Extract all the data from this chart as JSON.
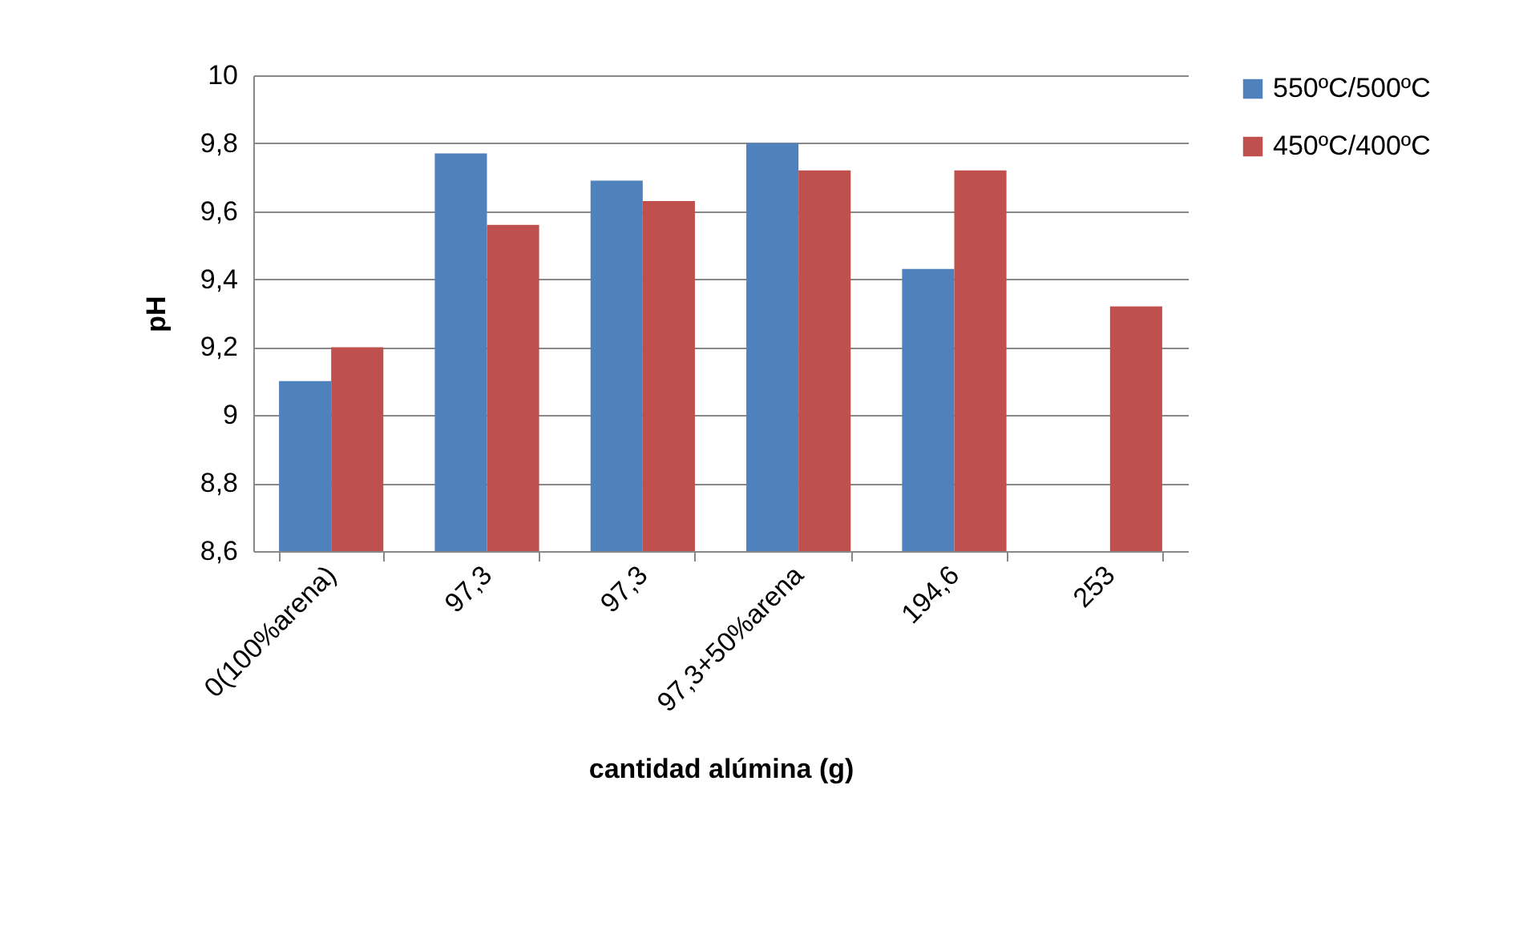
{
  "chart_data": {
    "type": "bar",
    "xlabel": "cantidad alúmina (g)",
    "ylabel": "pH",
    "categories": [
      "0(100%arena)",
      "97,3",
      "97,3",
      "97,3+50%arena",
      "194,6",
      "253"
    ],
    "series": [
      {
        "name": "550ºC/500ºC",
        "color": "#4f81bd",
        "values": [
          9.1,
          9.77,
          9.69,
          9.8,
          9.43,
          null
        ]
      },
      {
        "name": "450ºC/400ºC",
        "color": "#c0504d",
        "values": [
          9.2,
          9.56,
          9.63,
          9.72,
          9.72,
          9.32
        ]
      }
    ],
    "ylim": [
      8.6,
      10
    ],
    "yticks": [
      {
        "value": 8.6,
        "label": "8,6"
      },
      {
        "value": 8.8,
        "label": "8,8"
      },
      {
        "value": 9,
        "label": "9"
      },
      {
        "value": 9.2,
        "label": "9,2"
      },
      {
        "value": 9.4,
        "label": "9,4"
      },
      {
        "value": 9.6,
        "label": "9,6"
      },
      {
        "value": 9.8,
        "label": "9,8"
      },
      {
        "value": 10,
        "label": "10"
      }
    ],
    "grid": "y",
    "legend": "right"
  }
}
